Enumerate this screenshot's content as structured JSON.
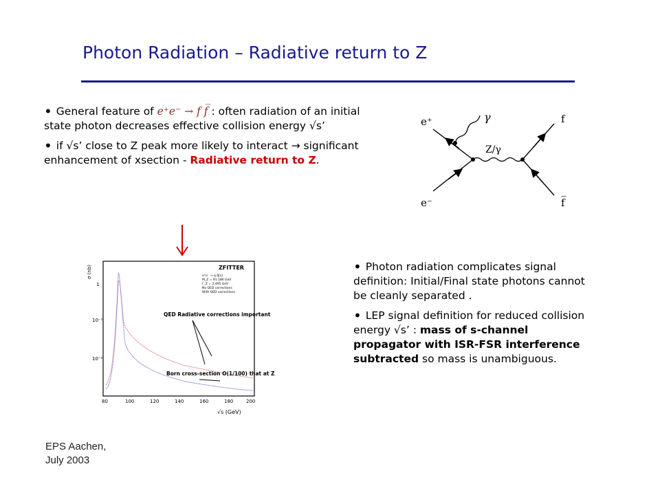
{
  "title": "Photon Radiation – Radiative return to Z",
  "left_bullets": {
    "b1_pre": "General feature of ",
    "b1_math": "e⁺e⁻ → f f̅",
    "b1_post": " : often radiation of an initial state photon decreases effective collision energy √s’",
    "b2_pre": "if √s’ close to Z peak more likely to interact → significant enhancement of xsection - ",
    "b2_red": "Radiative return to Z",
    "b2_end": "."
  },
  "right_bullets": {
    "b1": "Photon radiation  complicates signal definition: Initial/Final state photons cannot be cleanly separated .",
    "b2_pre": "LEP signal definition for reduced collision  energy √s’ : ",
    "b2_bold": "mass of s-channel propagator with  ISR-FSR interference subtracted",
    "b2_post": " so mass is unambiguous."
  },
  "feynman": {
    "e_plus": "e⁺",
    "e_minus": "e⁻",
    "f": "f",
    "fbar": "f̅",
    "gamma": "γ",
    "z_gamma": "Z/γ"
  },
  "plot": {
    "y_axis_label": "σ (nb)",
    "x_axis_label": "√s (GeV)",
    "legend_title": "ZFITTER",
    "legend_lines": [
      "e⁺e⁻ → q q̅(γ)",
      "M_Z = 91.186 GeV",
      "Γ_Z = 2.495 GeV",
      "No QED corrections",
      "With QED corrections"
    ],
    "annot_qed": "QED Radiative corrections important",
    "annot_born": "Born cross-section O(1/100) that at Z",
    "y_ticks": [
      "1",
      "10⁻¹",
      "10⁻²"
    ],
    "x_ticks": [
      "80",
      "100",
      "120",
      "140",
      "160",
      "180",
      "200"
    ]
  },
  "footer": {
    "line1": "EPS Aachen,",
    "line2": "July 2003"
  },
  "colors": {
    "title": "#1a1a8c",
    "highlight": "#cc0000"
  }
}
